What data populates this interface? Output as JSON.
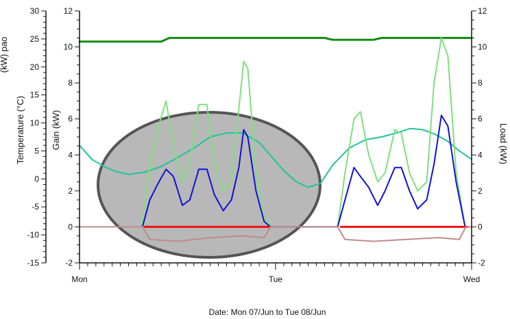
{
  "chart_data": {
    "type": "line",
    "title": "",
    "xlabel": "Date: Mon 07/Jun to Tue 08/Jun",
    "x_ticks": [
      "Mon",
      "Tue",
      "Wed"
    ],
    "axes": {
      "outer_left": {
        "label": "Load (kW)",
        "label_visible": "(kW) pao",
        "ylim": [
          -15,
          30
        ],
        "ticks": [
          30,
          25,
          20,
          15,
          10,
          5,
          0,
          -5,
          -10,
          -15
        ]
      },
      "left_temperature": {
        "label": "Temperature (°C)",
        "ylim": [
          -15,
          30
        ]
      },
      "left_gain": {
        "label": "Gain (kW)",
        "ylim": [
          -2,
          12
        ],
        "ticks": [
          12,
          10,
          8,
          6,
          4,
          2,
          0,
          -2
        ]
      },
      "right": {
        "label": "Load (kW)",
        "ylim": [
          -2,
          12
        ],
        "ticks": [
          12,
          10,
          8,
          6,
          4,
          2,
          0,
          -2
        ]
      }
    },
    "colors": {
      "dark_green": "#128a12",
      "teal": "#1fc49a",
      "light_green": "#7ee07e",
      "blue": "#1010d8",
      "red": "#ee1111",
      "pink": "#c08a8a",
      "ellipse_fill": "#b8b8b8",
      "ellipse_stroke": "#555555"
    },
    "x_hours_note": "",
    "series": [
      {
        "axis": "left_gain",
        "color": "dark_green",
        "width": 3,
        "points": [
          [
            0,
            10.3
          ],
          [
            10,
            10.3
          ],
          [
            11,
            10.5
          ],
          [
            30,
            10.5
          ],
          [
            31,
            10.4
          ],
          [
            36,
            10.4
          ],
          [
            37,
            10.5
          ],
          [
            48,
            10.5
          ]
        ]
      },
      {
        "axis": "left_temperature",
        "color": "teal",
        "width": 2,
        "points": [
          [
            0,
            6
          ],
          [
            1.5,
            3.5
          ],
          [
            3,
            2.2
          ],
          [
            4.5,
            1.3
          ],
          [
            6,
            0.8
          ],
          [
            8,
            1.2
          ],
          [
            10,
            2.2
          ],
          [
            12,
            3.8
          ],
          [
            14,
            5.5
          ],
          [
            16,
            7.5
          ],
          [
            18,
            8.2
          ],
          [
            20,
            8.2
          ],
          [
            22,
            6.5
          ],
          [
            23.5,
            4
          ],
          [
            25,
            1.5
          ],
          [
            26.5,
            -0.5
          ],
          [
            28,
            -1.5
          ],
          [
            29.5,
            -0.8
          ],
          [
            31,
            2.5
          ],
          [
            33,
            5.5
          ],
          [
            35,
            7
          ],
          [
            37,
            7.5
          ],
          [
            39,
            8.3
          ],
          [
            40.5,
            9
          ],
          [
            42,
            8.8
          ],
          [
            43.5,
            8
          ],
          [
            45,
            6.8
          ],
          [
            46.5,
            5
          ],
          [
            48,
            3.5
          ]
        ]
      },
      {
        "axis": "left_gain",
        "color": "light_green",
        "width": 2,
        "points": [
          [
            7.6,
            0
          ],
          [
            8.5,
            3
          ],
          [
            9.6,
            5.5
          ],
          [
            10.6,
            7
          ],
          [
            11.5,
            4.5
          ],
          [
            12.6,
            2.5
          ],
          [
            13.5,
            3.5
          ],
          [
            14.6,
            6.8
          ],
          [
            15.6,
            6.8
          ],
          [
            16.5,
            3.5
          ],
          [
            17.6,
            2
          ],
          [
            18.6,
            2.5
          ],
          [
            19.6,
            7
          ],
          [
            20.1,
            9.2
          ],
          [
            20.6,
            8.8
          ],
          [
            21.6,
            3
          ],
          [
            22.6,
            0.5
          ],
          [
            23.6,
            0
          ],
          [
            31.6,
            0
          ],
          [
            32.5,
            3
          ],
          [
            33.6,
            6
          ],
          [
            34.4,
            6.4
          ],
          [
            35.4,
            4
          ],
          [
            36.5,
            2.5
          ],
          [
            37.4,
            3
          ],
          [
            38.6,
            5.4
          ],
          [
            39.4,
            5.2
          ],
          [
            40.4,
            3
          ],
          [
            41.4,
            2
          ],
          [
            42.5,
            2.5
          ],
          [
            43.4,
            8
          ],
          [
            44.3,
            10.5
          ],
          [
            45.1,
            9.5
          ],
          [
            46.1,
            3
          ],
          [
            47.2,
            0
          ],
          [
            47.5,
            0
          ]
        ]
      },
      {
        "axis": "left_gain",
        "color": "blue",
        "width": 2,
        "points": [
          [
            7.7,
            0
          ],
          [
            8.6,
            1.5
          ],
          [
            9.6,
            2.4
          ],
          [
            10.6,
            3.2
          ],
          [
            11.5,
            2.8
          ],
          [
            12.6,
            1.2
          ],
          [
            13.5,
            1.5
          ],
          [
            14.6,
            3.2
          ],
          [
            15.6,
            3.2
          ],
          [
            16.5,
            1.8
          ],
          [
            17.6,
            0.9
          ],
          [
            18.6,
            1.5
          ],
          [
            19.5,
            3.3
          ],
          [
            20.1,
            5.4
          ],
          [
            20.6,
            5
          ],
          [
            21.6,
            2
          ],
          [
            22.6,
            0.3
          ],
          [
            23.4,
            0
          ],
          [
            31.6,
            0
          ],
          [
            32.5,
            1.5
          ],
          [
            33.6,
            3.3
          ],
          [
            34.4,
            2.8
          ],
          [
            35.4,
            2.2
          ],
          [
            36.5,
            1.2
          ],
          [
            37.4,
            2
          ],
          [
            38.6,
            3.3
          ],
          [
            39.4,
            3.3
          ],
          [
            40.4,
            2
          ],
          [
            41.4,
            1
          ],
          [
            42.5,
            1.5
          ],
          [
            43.4,
            3.5
          ],
          [
            44.3,
            6.2
          ],
          [
            45.1,
            5.6
          ],
          [
            46.1,
            2.5
          ],
          [
            47.2,
            0
          ],
          [
            47.5,
            0
          ]
        ]
      },
      {
        "axis": "left_gain",
        "color": "red",
        "width": 3,
        "points": [
          [
            8,
            0
          ],
          [
            23.3,
            0
          ]
        ],
        "points_b": [
          [
            32,
            0
          ],
          [
            47.5,
            0
          ]
        ]
      },
      {
        "axis": "left_gain",
        "color": "pink",
        "width": 2,
        "points": [
          [
            0,
            0
          ],
          [
            7.7,
            0
          ],
          [
            8.6,
            -0.7
          ],
          [
            12,
            -0.8
          ],
          [
            16,
            -0.6
          ],
          [
            20,
            -0.5
          ],
          [
            22.6,
            -0.6
          ],
          [
            23.4,
            0
          ],
          [
            31.6,
            0
          ],
          [
            32.5,
            -0.7
          ],
          [
            36,
            -0.8
          ],
          [
            40,
            -0.7
          ],
          [
            44,
            -0.6
          ],
          [
            46.5,
            -0.7
          ],
          [
            47.3,
            0
          ],
          [
            48,
            0
          ]
        ]
      }
    ]
  }
}
